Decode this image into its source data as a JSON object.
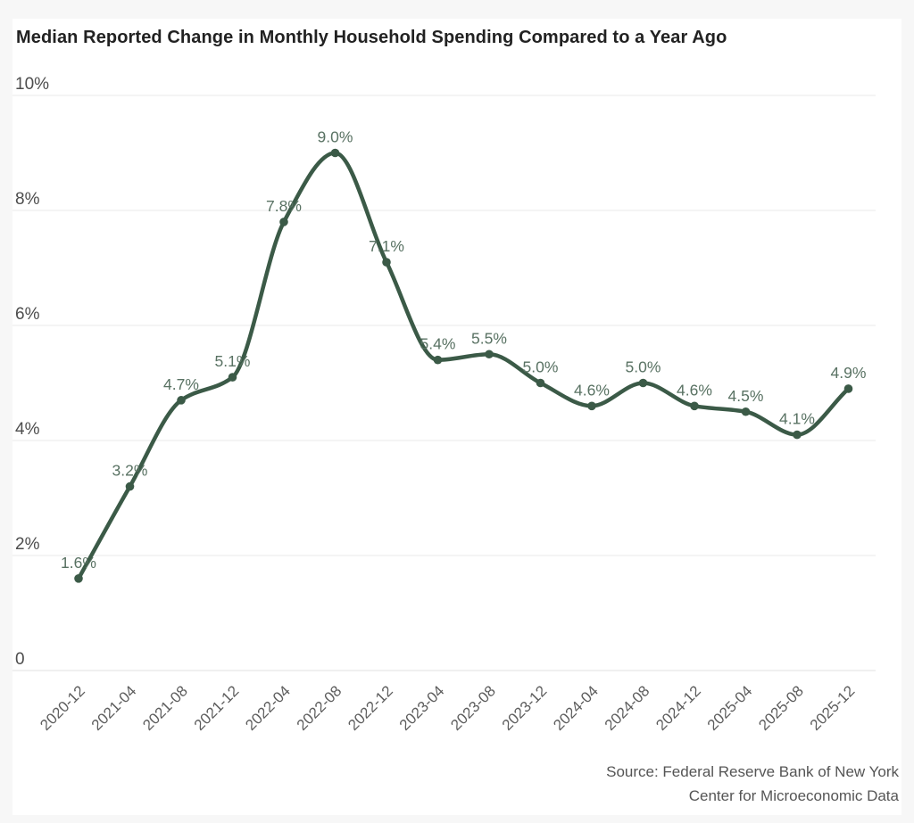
{
  "title": "Median Reported Change in Monthly Household Spending Compared to a Year Ago",
  "source": {
    "line1": "Source: Federal Reserve Bank of New York",
    "line2": "Center for Microeconomic Data"
  },
  "colors": {
    "line": "#3b5a47",
    "point": "#3b5a47",
    "point_label": "#597263",
    "grid": "#e8e8e8",
    "baseline": "#e0e0e0",
    "y_axis_text": "#4d4d4d",
    "x_axis_text": "#5d5d5d",
    "title_text": "#222222",
    "source_text": "#555555",
    "page_background": "#f7f7f7",
    "card_background": "#ffffff"
  },
  "chart_data": {
    "type": "line",
    "title": "Median Reported Change in Monthly Household Spending Compared to a Year Ago",
    "x": [
      "2020-12",
      "2021-04",
      "2021-08",
      "2021-12",
      "2022-04",
      "2022-08",
      "2022-12",
      "2023-04",
      "2023-08",
      "2023-12",
      "2024-04",
      "2024-08",
      "2024-12",
      "2025-04",
      "2025-08",
      "2025-12"
    ],
    "values": [
      1.6,
      3.2,
      4.7,
      5.1,
      7.8,
      9.0,
      7.1,
      5.4,
      5.5,
      5.0,
      4.6,
      5.0,
      4.6,
      4.5,
      4.1,
      4.9
    ],
    "point_labels": [
      "1.6%",
      "3.2%",
      "4.7%",
      "5.1%",
      "7.8%",
      "9.0%",
      "7.1%",
      "5.4%",
      "5.5%",
      "5.0%",
      "4.6%",
      "5.0%",
      "4.6%",
      "4.5%",
      "4.1%",
      "4.9%"
    ],
    "xlabel": "",
    "ylabel": "",
    "ylim": [
      0,
      10
    ],
    "y_ticks": [
      {
        "value": 0,
        "label": "0"
      },
      {
        "value": 2,
        "label": "2%"
      },
      {
        "value": 4,
        "label": "4%"
      },
      {
        "value": 6,
        "label": "6%"
      },
      {
        "value": 8,
        "label": "8%"
      },
      {
        "value": 10,
        "label": "10%"
      }
    ],
    "grid": true,
    "legend": "none",
    "curve": "monotone",
    "x_label_rotation": -45
  }
}
